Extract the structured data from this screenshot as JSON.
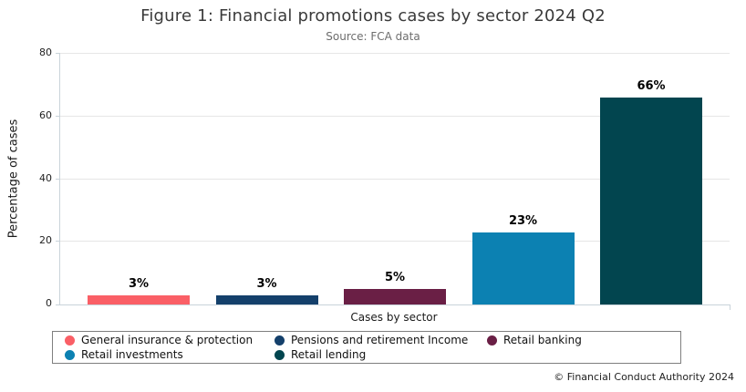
{
  "footer": {
    "copyright": "© Financial Conduct Authority 2024"
  },
  "chart_data": {
    "type": "bar",
    "title": "Figure 1: Financial promotions cases by sector 2024 Q2",
    "subtitle": "Source: FCA data",
    "xlabel": "Cases by sector",
    "ylabel": "Percentage of cases",
    "ylim": [
      0,
      80
    ],
    "yticks": [
      0,
      20,
      40,
      60,
      80
    ],
    "grid": true,
    "legend_position": "bottom",
    "categories": [
      "General insurance & protection",
      "Pensions and retirement Income",
      "Retail banking",
      "Retail investments",
      "Retail lending"
    ],
    "values": [
      3,
      3,
      5,
      23,
      66
    ],
    "value_labels": [
      "3%",
      "3%",
      "5%",
      "23%",
      "66%"
    ],
    "colors": [
      "#FA5F66",
      "#14406B",
      "#6A1F45",
      "#0C81B2",
      "#02454F"
    ],
    "axis_color": "#c9d3da",
    "grid_color": "#e6e6e6"
  }
}
